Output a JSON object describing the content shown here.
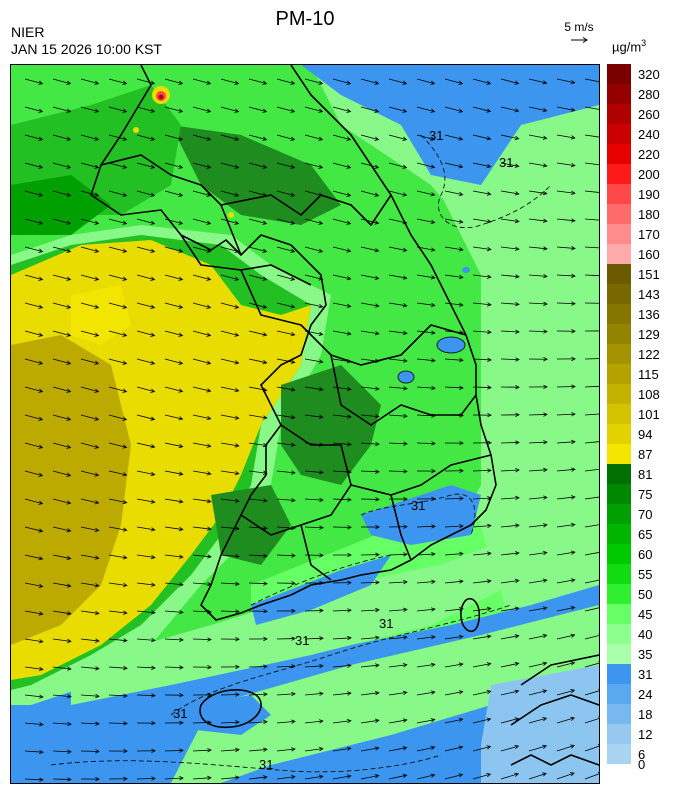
{
  "header": {
    "agency": "NIER",
    "datetime": "JAN 15 2026 10:00 KST",
    "title": "PM-10",
    "wind_reference": "5 m/s",
    "unit_base": "µg/m",
    "unit_exp": "3"
  },
  "contour_labels": [
    "31",
    "31",
    "31",
    "31",
    "31",
    "31",
    "31"
  ],
  "legend": {
    "bins": [
      {
        "label": "320",
        "color": "#7a0000"
      },
      {
        "label": "280",
        "color": "#940000"
      },
      {
        "label": "260",
        "color": "#b00000"
      },
      {
        "label": "240",
        "color": "#cc0000"
      },
      {
        "label": "220",
        "color": "#e60000"
      },
      {
        "label": "200",
        "color": "#ff1a1a"
      },
      {
        "label": "190",
        "color": "#ff4848"
      },
      {
        "label": "180",
        "color": "#ff6a6a"
      },
      {
        "label": "170",
        "color": "#ff8c8c"
      },
      {
        "label": "160",
        "color": "#ffaaaa"
      },
      {
        "label": "151",
        "color": "#6b5a00"
      },
      {
        "label": "143",
        "color": "#776800"
      },
      {
        "label": "136",
        "color": "#857600"
      },
      {
        "label": "129",
        "color": "#938400"
      },
      {
        "label": "122",
        "color": "#a39300"
      },
      {
        "label": "115",
        "color": "#b3a200"
      },
      {
        "label": "108",
        "color": "#c3b200"
      },
      {
        "label": "101",
        "color": "#d3c200"
      },
      {
        "label": "94",
        "color": "#e2d300"
      },
      {
        "label": "87",
        "color": "#f2e600"
      },
      {
        "label": "81",
        "color": "#007000"
      },
      {
        "label": "75",
        "color": "#008800"
      },
      {
        "label": "70",
        "color": "#00a000"
      },
      {
        "label": "65",
        "color": "#00b400"
      },
      {
        "label": "60",
        "color": "#00c800"
      },
      {
        "label": "55",
        "color": "#10dc10"
      },
      {
        "label": "50",
        "color": "#30ee30"
      },
      {
        "label": "45",
        "color": "#66ff66"
      },
      {
        "label": "40",
        "color": "#8cff8c"
      },
      {
        "label": "35",
        "color": "#aaffaa"
      },
      {
        "label": "31",
        "color": "#3c96f0"
      },
      {
        "label": "24",
        "color": "#5aa8f0"
      },
      {
        "label": "18",
        "color": "#78b8f0"
      },
      {
        "label": "12",
        "color": "#96c8f0"
      },
      {
        "label": "6",
        "color": "#a8d4f2"
      }
    ],
    "bottom_label": "0"
  },
  "colors": {
    "yellow_high": "#e8dc00",
    "yellow_olive": "#bcaa00",
    "green_dark": "#1f8c1f",
    "green_mid": "#22c022",
    "green_light": "#44e844",
    "green_pale": "#88f888",
    "blue": "#3c96f0",
    "blue_light": "#8cc6f0"
  }
}
